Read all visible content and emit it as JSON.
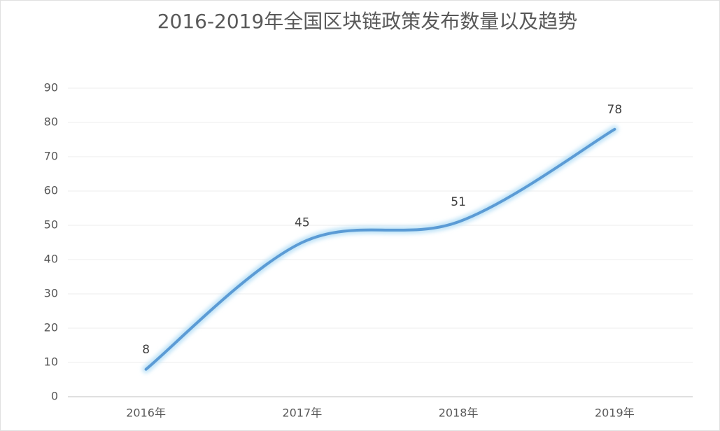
{
  "chart_data": {
    "type": "line",
    "title": "2016-2019年全国区块链政策发布数量以及趋势",
    "categories": [
      "2016年",
      "2017年",
      "2018年",
      "2019年"
    ],
    "values": [
      8,
      45,
      51,
      78
    ],
    "color": "#5b9bd5",
    "smooth": true,
    "data_labels": true,
    "ylim": [
      0,
      90
    ],
    "yticks": [
      0,
      10,
      20,
      30,
      40,
      50,
      60,
      70,
      80,
      90
    ],
    "grid": true
  }
}
